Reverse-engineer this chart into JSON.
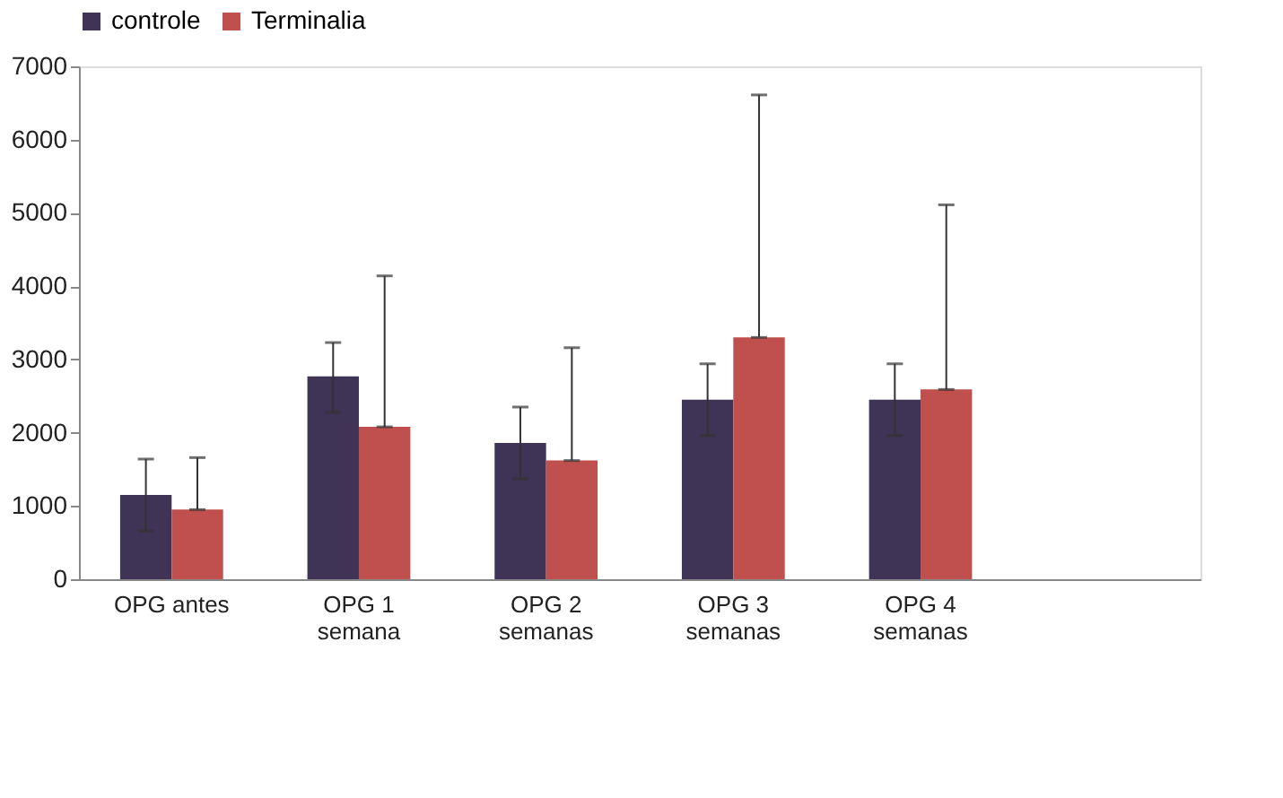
{
  "chart_data": {
    "type": "bar",
    "categories": [
      "OPG antes",
      "OPG 1\nsemana",
      "OPG 2\nsemanas",
      "OPG 3\nsemanas",
      "OPG 4\nsemanas",
      null
    ],
    "series": [
      {
        "name": "controle",
        "color": "#3f3356",
        "values": [
          1150,
          2770,
          1860,
          2450,
          2450,
          null
        ],
        "errors": [
          [
            660,
            1640
          ],
          [
            2280,
            3230
          ],
          [
            1370,
            2350
          ],
          [
            1960,
            2940
          ],
          [
            1960,
            2940
          ],
          null
        ]
      },
      {
        "name": "Terminalia",
        "color": "#c0504d",
        "values": [
          950,
          2080,
          1620,
          3300,
          2590,
          null
        ],
        "errors": [
          [
            950,
            1660
          ],
          [
            2080,
            4140
          ],
          [
            1620,
            3160
          ],
          [
            3300,
            6610
          ],
          [
            2590,
            5110
          ],
          null
        ]
      }
    ],
    "ylim": [
      0,
      7000
    ],
    "yticks": [
      0,
      1000,
      2000,
      3000,
      4000,
      5000,
      6000,
      7000
    ],
    "grid": false,
    "legend": "top"
  }
}
